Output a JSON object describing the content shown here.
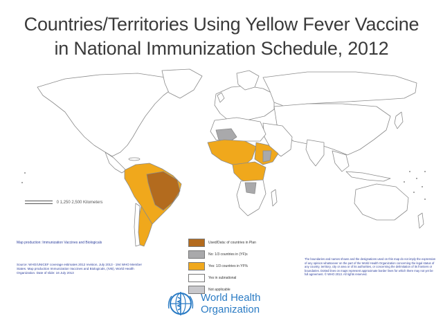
{
  "title_line1": "Countries/Territories Using Yellow Fever Vaccine",
  "title_line2": "in National Immunization Schedule, 2012",
  "colors": {
    "land": "#ffffff",
    "border": "#8a8a8a",
    "high": "#b36b1e",
    "orange": "#f0a81c",
    "grey": "#a9a9ab",
    "nodata": "#ffffff",
    "na": "#c8c8cc",
    "who_blue": "#2a7bc4"
  },
  "legend": [
    {
      "label": "Used/Data: of countries in Plan",
      "color_key": "high"
    },
    {
      "label": "No: 1/3 countries in (YF)s",
      "color_key": "grey"
    },
    {
      "label": "Yes: 1/3 countries in YF%",
      "color_key": "orange"
    },
    {
      "label": "Yes in subnational",
      "color_key": "nodata"
    },
    {
      "label": "Not applicable",
      "color_key": "na"
    }
  ],
  "scale_text": "0  1,250  2,500 Kilometers",
  "note_blue": "Map production: Immunization Vaccines and Biologicals",
  "source_text": "Source: WHO/UNICEF coverage estimates 2012 revision, July 2013 - 194 WHO Member States. Map production Immunization Vaccines and Biologicals, (IVB), World Health Organization. Date of slide: 16 July 2013",
  "disclaimer_text": "The boundaries and names shown and the designations used on this map do not imply the expression of any opinion whatsoever on the part of the World Health Organization concerning the legal status of any country, territory, city or area or of its authorities, or concerning the delimitation of its frontiers or boundaries. Dotted lines on maps represent approximate border lines for which there may not yet be full agreement. © WHO 2013. All rights reserved.",
  "who_line1": "World Health",
  "who_line2": "Organization"
}
